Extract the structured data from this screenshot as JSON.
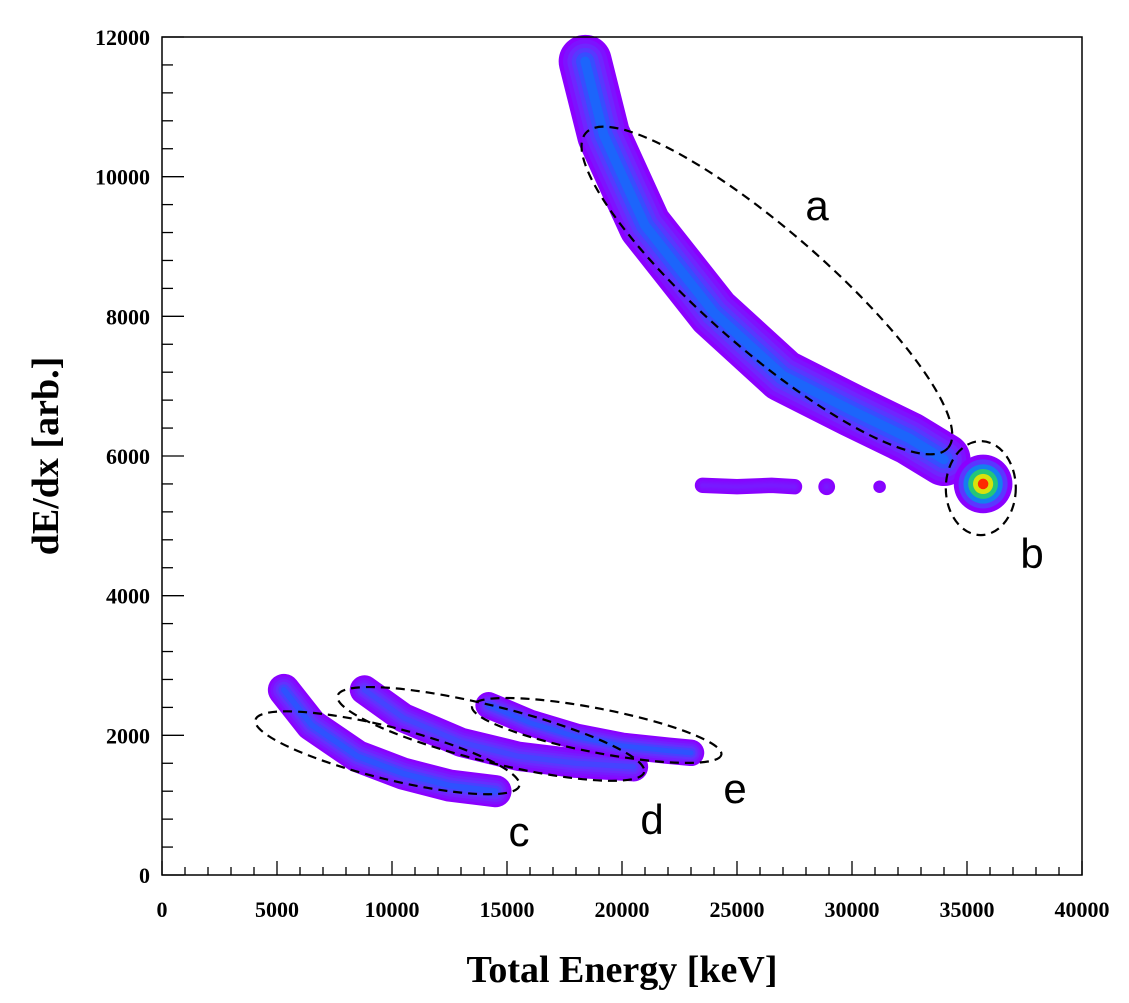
{
  "chart_data": {
    "type": "heatmap",
    "title": "",
    "xlabel": "Total Energy [keV]",
    "ylabel": "dE/dx [arb.]",
    "xlim": [
      0,
      40000
    ],
    "ylim": [
      0,
      12000
    ],
    "x_ticks": [
      "0",
      "5000",
      "10000",
      "15000",
      "20000",
      "25000",
      "30000",
      "35000",
      "40000"
    ],
    "y_ticks": [
      "0",
      "2000",
      "4000",
      "6000",
      "8000",
      "10000",
      "12000"
    ],
    "colormap": [
      "#8a00ff",
      "#6a2cff",
      "#1f5cff",
      "#00b4d8",
      "#3cd03c",
      "#ffe600",
      "#ff2a00"
    ],
    "bands": [
      {
        "name": "a",
        "points": [
          [
            18400,
            11650
          ],
          [
            19200,
            10600
          ],
          [
            21000,
            9300
          ],
          [
            24000,
            8050
          ],
          [
            27000,
            7150
          ],
          [
            30000,
            6650
          ],
          [
            32500,
            6250
          ],
          [
            34000,
            5950
          ]
        ],
        "width": 380,
        "peak": 0.35
      },
      {
        "name": "b",
        "points": [
          [
            35700,
            5600
          ]
        ],
        "width": 420,
        "peak": 1.0
      },
      {
        "name": "c",
        "points": [
          [
            5300,
            2650
          ],
          [
            6500,
            2150
          ],
          [
            8500,
            1700
          ],
          [
            10500,
            1450
          ],
          [
            12500,
            1280
          ],
          [
            14500,
            1200
          ]
        ],
        "width": 230,
        "peak": 0.3
      },
      {
        "name": "d",
        "points": [
          [
            8800,
            2650
          ],
          [
            10500,
            2250
          ],
          [
            13000,
            1900
          ],
          [
            15500,
            1700
          ],
          [
            18000,
            1600
          ],
          [
            20500,
            1550
          ]
        ],
        "width": 210,
        "peak": 0.25
      },
      {
        "name": "e",
        "points": [
          [
            14200,
            2430
          ],
          [
            16000,
            2180
          ],
          [
            18000,
            1980
          ],
          [
            20000,
            1850
          ],
          [
            22000,
            1780
          ],
          [
            23000,
            1750
          ]
        ],
        "width": 190,
        "peak": 0.3
      },
      {
        "name": "",
        "points": [
          [
            23500,
            5580
          ],
          [
            25000,
            5560
          ],
          [
            26500,
            5580
          ],
          [
            27500,
            5560
          ]
        ],
        "width": 110,
        "peak": 0.1
      },
      {
        "name": "",
        "points": [
          [
            28900,
            5560
          ]
        ],
        "width": 120,
        "peak": 0.1
      },
      {
        "name": "",
        "points": [
          [
            31200,
            5560
          ]
        ],
        "width": 90,
        "peak": 0.05
      }
    ],
    "regions": [
      {
        "label": "a",
        "cx": 26300,
        "cy": 8370,
        "rx": 12400,
        "ry": 850,
        "angle_deg": 43
      },
      {
        "label": "b",
        "cx": 35600,
        "cy": 5540,
        "rx": 1500,
        "ry": 1300,
        "angle_deg": 0
      },
      {
        "label": "c",
        "cx": 9800,
        "cy": 1750,
        "rx": 6100,
        "ry": 380,
        "angle_deg": 14
      },
      {
        "label": "d",
        "cx": 14300,
        "cy": 2020,
        "rx": 6900,
        "ry": 400,
        "angle_deg": 14
      },
      {
        "label": "e",
        "cx": 18900,
        "cy": 2070,
        "rx": 5500,
        "ry": 330,
        "angle_deg": 11
      }
    ]
  }
}
